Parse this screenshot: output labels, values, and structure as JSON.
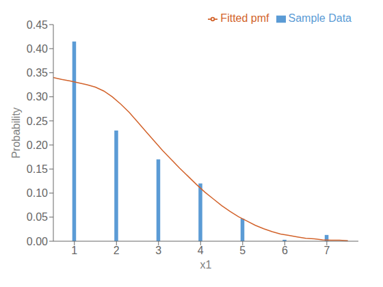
{
  "chart_data": {
    "type": "bar",
    "xlabel": "x1",
    "ylabel": "Probability",
    "series": [
      {
        "name": "Sample Data",
        "type": "bar",
        "color": "#5B9BD5",
        "x": [
          1,
          2,
          3,
          4,
          5,
          6,
          7
        ],
        "values": [
          0.415,
          0.23,
          0.17,
          0.12,
          0.047,
          0.003,
          0.013
        ]
      },
      {
        "name": "Fitted pmf",
        "type": "line",
        "color": "#D2622A",
        "x": [
          0.5,
          0.7,
          0.9,
          1.1,
          1.3,
          1.5,
          1.7,
          1.9,
          2.1,
          2.3,
          2.5,
          2.7,
          2.9,
          3.1,
          3.3,
          3.5,
          3.7,
          3.9,
          4.1,
          4.3,
          4.5,
          4.7,
          4.9,
          5.1,
          5.3,
          5.5,
          5.7,
          5.9,
          6.1,
          6.3,
          6.5,
          6.7,
          6.9,
          7.1,
          7.3,
          7.5
        ],
        "values": [
          0.34,
          0.336,
          0.333,
          0.329,
          0.325,
          0.32,
          0.312,
          0.3,
          0.285,
          0.268,
          0.248,
          0.228,
          0.208,
          0.188,
          0.17,
          0.152,
          0.135,
          0.118,
          0.102,
          0.088,
          0.074,
          0.062,
          0.051,
          0.042,
          0.033,
          0.026,
          0.02,
          0.015,
          0.012,
          0.009,
          0.006,
          0.005,
          0.003,
          0.002,
          0.002,
          0.001
        ]
      }
    ],
    "xlim": [
      0.5,
      7.75
    ],
    "xticks": [
      1,
      2,
      3,
      4,
      5,
      6,
      7
    ],
    "ylim": [
      0,
      0.45
    ],
    "yticks": [
      {
        "value": 0.0,
        "label": "0.00"
      },
      0.05,
      {
        "value": 0.1,
        "label": "0.10"
      },
      0.15,
      {
        "value": 0.2,
        "label": "0.20"
      },
      0.25,
      {
        "value": 0.3,
        "label": "0.30"
      },
      0.35,
      {
        "value": 0.4,
        "label": "0.40"
      },
      0.45
    ],
    "legend": "upper right",
    "grid": false
  }
}
